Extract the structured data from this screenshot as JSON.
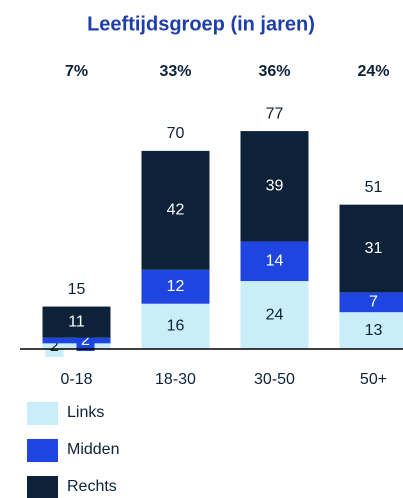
{
  "chart_data": {
    "type": "stacked_bar",
    "title": "Leeftijdsgroep (in jaren)",
    "categories": [
      "0-18",
      "18-30",
      "30-50",
      "50+"
    ],
    "share_values": [
      7,
      33,
      36,
      24
    ],
    "share_labels": [
      "7%",
      "33%",
      "36%",
      "24%"
    ],
    "totals": [
      15,
      70,
      77,
      51
    ],
    "series": [
      {
        "name": "Links",
        "color": "#c9eefa",
        "label_color": "#0d2238",
        "values": [
          2,
          16,
          24,
          13
        ]
      },
      {
        "name": "Midden",
        "color": "#1f45e0",
        "label_color": "#ffffff",
        "values": [
          2,
          12,
          14,
          7
        ]
      },
      {
        "name": "Rechts",
        "color": "#0d2238",
        "label_color": "#ffffff",
        "values": [
          11,
          42,
          39,
          31
        ]
      }
    ]
  }
}
